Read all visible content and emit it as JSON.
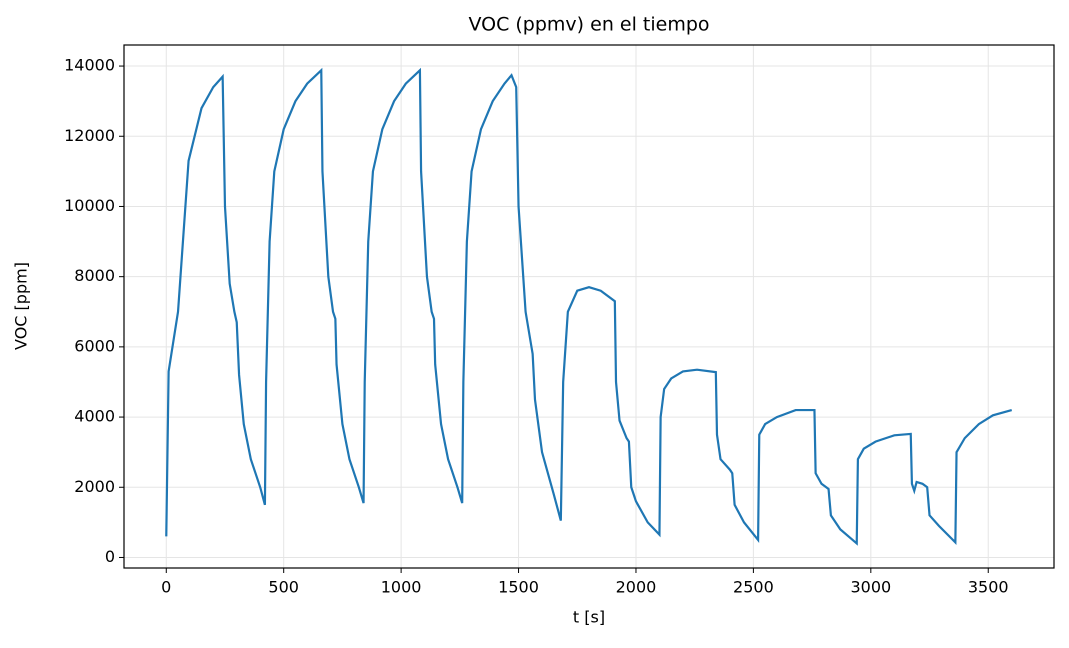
{
  "chart_data": {
    "type": "line",
    "title": "VOC (ppmv) en el tiempo",
    "x_label": "t [s]",
    "y_label": "VOC [ppm]",
    "x": [
      0,
      10,
      50,
      95,
      150,
      200,
      240,
      250,
      270,
      290,
      300,
      310,
      330,
      360,
      400,
      420,
      425,
      440,
      460,
      500,
      550,
      600,
      660,
      665,
      690,
      710,
      720,
      725,
      750,
      780,
      820,
      840,
      845,
      860,
      880,
      920,
      970,
      1020,
      1080,
      1085,
      1110,
      1130,
      1140,
      1145,
      1170,
      1200,
      1240,
      1260,
      1265,
      1280,
      1300,
      1340,
      1390,
      1440,
      1470,
      1490,
      1500,
      1530,
      1555,
      1560,
      1570,
      1600,
      1650,
      1680,
      1690,
      1710,
      1750,
      1800,
      1850,
      1910,
      1915,
      1930,
      1960,
      1970,
      1980,
      2000,
      2050,
      2100,
      2105,
      2120,
      2150,
      2200,
      2260,
      2340,
      2345,
      2360,
      2400,
      2410,
      2420,
      2460,
      2520,
      2525,
      2550,
      2600,
      2680,
      2760,
      2765,
      2790,
      2820,
      2830,
      2870,
      2940,
      2945,
      2970,
      3020,
      3100,
      3170,
      3175,
      3185,
      3195,
      3220,
      3240,
      3250,
      3290,
      3360,
      3365,
      3400,
      3460,
      3520,
      3600
    ],
    "series": [
      {
        "name": "VOC",
        "color": "#1f77b4",
        "values": [
          600,
          5300,
          7000,
          11300,
          12800,
          13400,
          13700,
          10000,
          7800,
          7000,
          6700,
          5200,
          3800,
          2800,
          2000,
          1500,
          5000,
          9000,
          11000,
          12200,
          13000,
          13500,
          13880,
          11000,
          8000,
          7000,
          6800,
          5500,
          3800,
          2800,
          2000,
          1550,
          5000,
          9000,
          11000,
          12200,
          13000,
          13500,
          13880,
          11000,
          8000,
          7000,
          6800,
          5500,
          3800,
          2800,
          2000,
          1550,
          5000,
          9000,
          11000,
          12200,
          13000,
          13500,
          13740,
          13400,
          10000,
          7000,
          6000,
          5800,
          4500,
          3000,
          1800,
          1050,
          5000,
          7000,
          7600,
          7700,
          7600,
          7300,
          5000,
          3900,
          3400,
          3300,
          2000,
          1600,
          1000,
          650,
          4000,
          4800,
          5100,
          5300,
          5350,
          5280,
          3500,
          2800,
          2500,
          2400,
          1500,
          1000,
          500,
          3500,
          3800,
          4000,
          4200,
          4200,
          2400,
          2100,
          1950,
          1200,
          800,
          400,
          2800,
          3100,
          3300,
          3480,
          3520,
          2100,
          1900,
          2150,
          2100,
          2000,
          1200,
          900,
          430,
          3000,
          3400,
          3800,
          4050,
          4200
        ]
      }
    ],
    "xlim": [
      -180,
      3780
    ],
    "ylim": [
      -300,
      14600
    ],
    "xticks": [
      0,
      500,
      1000,
      1500,
      2000,
      2500,
      3000,
      3500
    ],
    "yticks": [
      0,
      2000,
      4000,
      6000,
      8000,
      10000,
      12000,
      14000
    ],
    "grid": true
  }
}
